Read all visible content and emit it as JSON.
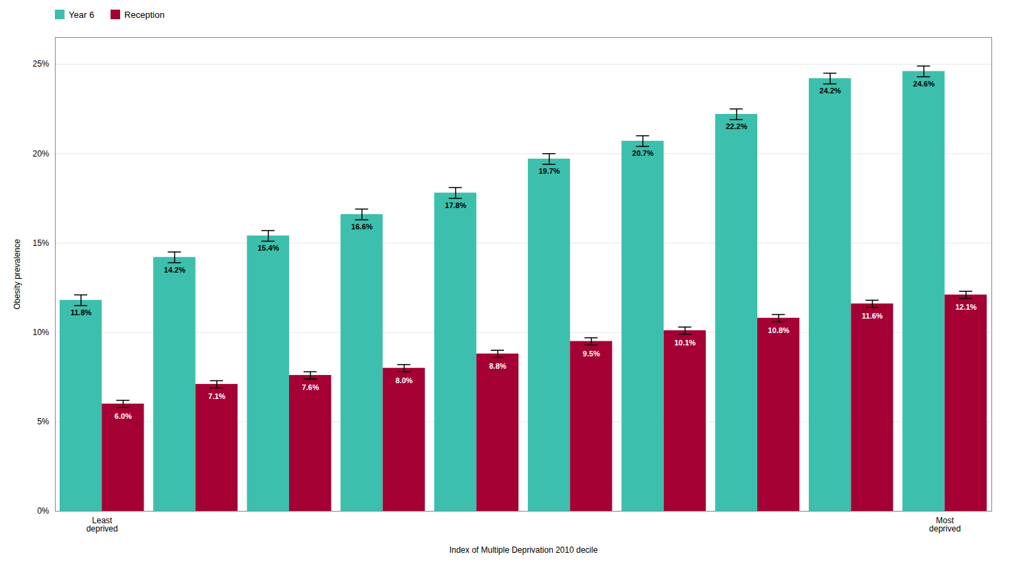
{
  "chart_data": {
    "type": "bar",
    "categories": [
      "Least\ndeprived",
      null,
      null,
      null,
      null,
      null,
      null,
      null,
      null,
      "Most\ndeprived"
    ],
    "series": [
      {
        "name": "Year 6",
        "color": "#3DBFAD",
        "values": [
          11.8,
          14.2,
          15.4,
          16.6,
          17.8,
          19.7,
          20.7,
          22.2,
          24.2,
          24.6
        ],
        "value_labels": [
          "11.8%",
          "14.2%",
          "15.4%",
          "16.6%",
          "17.8%",
          "19.7%",
          "20.7%",
          "22.2%",
          "24.2%",
          "24.6%"
        ],
        "errors": [
          0.3,
          0.3,
          0.3,
          0.3,
          0.3,
          0.3,
          0.3,
          0.3,
          0.3,
          0.3
        ]
      },
      {
        "name": "Reception",
        "color": "#A50034",
        "values": [
          6.0,
          7.1,
          7.6,
          8.0,
          8.8,
          9.5,
          10.1,
          10.8,
          11.6,
          12.1
        ],
        "value_labels": [
          "6.0%",
          "7.1%",
          "7.6%",
          "8.0%",
          "8.8%",
          "9.5%",
          "10.1%",
          "10.8%",
          "11.6%",
          "12.1%"
        ],
        "errors": [
          0.2,
          0.2,
          0.2,
          0.2,
          0.2,
          0.2,
          0.2,
          0.2,
          0.2,
          0.2
        ]
      }
    ],
    "xlabel": "Index of Multiple Deprivation 2010 decile",
    "ylabel": "Obesity prevalence",
    "ylim": [
      0,
      26.5
    ],
    "yticks": [
      {
        "value": 0,
        "label": "0%"
      },
      {
        "value": 5,
        "label": "5%"
      },
      {
        "value": 10,
        "label": "10%"
      },
      {
        "value": 15,
        "label": "15%"
      },
      {
        "value": 20,
        "label": "20%"
      },
      {
        "value": 25,
        "label": "25%"
      }
    ],
    "grid": true,
    "legend": "upper left",
    "data_labels": true
  }
}
